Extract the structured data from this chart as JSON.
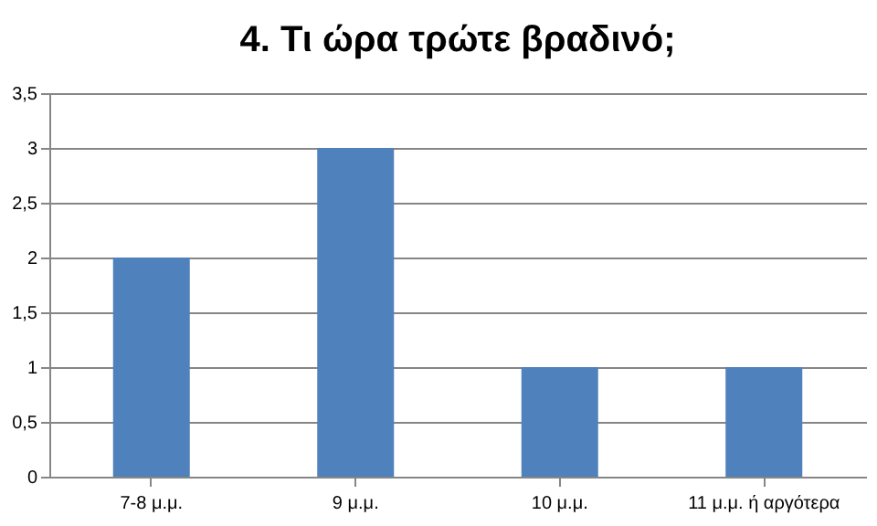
{
  "chart_data": {
    "type": "bar",
    "title": "4. Τι ώρα τρώτε βραδινό;",
    "categories": [
      "7-8 μ.μ.",
      "9 μ.μ.",
      "10 μ.μ.",
      "11 μ.μ. ή αργότερα"
    ],
    "values": [
      2,
      3,
      1,
      1
    ],
    "color": "#4f81bd",
    "ylim": [
      0,
      3.5
    ],
    "yticks": [
      0,
      {
        "value": 0.5,
        "label": "0,5"
      },
      1,
      {
        "value": 1.5,
        "label": "1,5"
      },
      2,
      {
        "value": 2.5,
        "label": "2,5"
      },
      3,
      {
        "value": 3.5,
        "label": "3,5"
      }
    ],
    "grid": "y"
  }
}
